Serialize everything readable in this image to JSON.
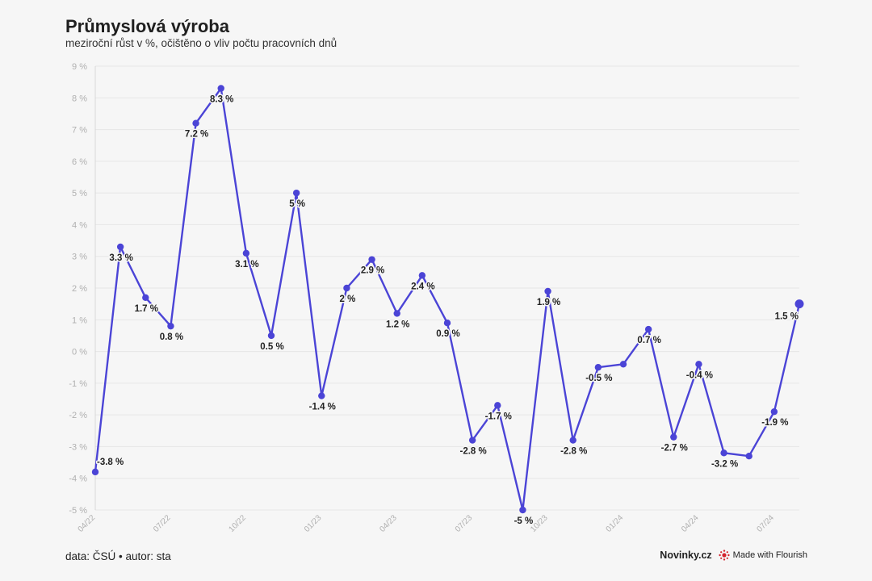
{
  "title": "Průmyslová výroba",
  "subtitle": "meziroční růst v %, očištěno o vliv počtu pracovních dnů",
  "footer": {
    "source": "data: ČSÚ • autor: sta",
    "brand": "Novinky.cz",
    "made_with": "Made with Flourish"
  },
  "colors": {
    "line": "#4b44d6",
    "grid": "#e6e6e6",
    "background": "#f6f6f6"
  },
  "chart_data": {
    "type": "line",
    "x": [
      "04/22",
      "05/22",
      "06/22",
      "07/22",
      "08/22",
      "09/22",
      "10/22",
      "11/22",
      "12/22",
      "01/23",
      "02/23",
      "03/23",
      "04/23",
      "05/23",
      "06/23",
      "07/23",
      "08/23",
      "09/23",
      "10/23",
      "11/23",
      "12/23",
      "01/24",
      "02/24",
      "03/24",
      "04/24",
      "05/24",
      "06/24",
      "07/24",
      "08/24"
    ],
    "values": [
      -3.8,
      3.3,
      1.7,
      0.8,
      7.2,
      8.3,
      3.1,
      0.5,
      5.0,
      -1.4,
      2.0,
      2.9,
      1.2,
      2.4,
      0.9,
      -2.8,
      -1.7,
      -5.0,
      1.9,
      -2.8,
      -0.5,
      -0.4,
      0.7,
      -2.7,
      -0.4,
      -3.2,
      -3.3,
      -1.9,
      1.5
    ],
    "data_labels": [
      "-3.8 %",
      "3.3 %",
      "1.7 %",
      "0.8 %",
      "7.2 %",
      "8.3 %",
      "3.1 %",
      "0.5 %",
      "5 %",
      "-1.4 %",
      "2 %",
      "2.9 %",
      "1.2 %",
      "2.4 %",
      "0.9 %",
      "-2.8 %",
      "-1.7 %",
      "-5 %",
      "1.9 %",
      "-2.8 %",
      "-0.5 %",
      "",
      "0.7 %",
      "-2.7 %",
      "-0.4 %",
      "-3.2 %",
      "",
      "-1.9 %",
      "1.5 %"
    ],
    "x_tick_labels": [
      "04/22",
      "07/22",
      "10/22",
      "01/23",
      "04/23",
      "07/23",
      "10/23",
      "01/24",
      "04/24",
      "07/24"
    ],
    "y_tick_labels": [
      "9 %",
      "8 %",
      "7 %",
      "6 %",
      "5 %",
      "4 %",
      "3 %",
      "2 %",
      "1 %",
      "0 %",
      "-1 %",
      "-2 %",
      "-3 %",
      "-4 %",
      "-5 %"
    ],
    "ylim": [
      -5,
      9
    ],
    "grid": true
  }
}
